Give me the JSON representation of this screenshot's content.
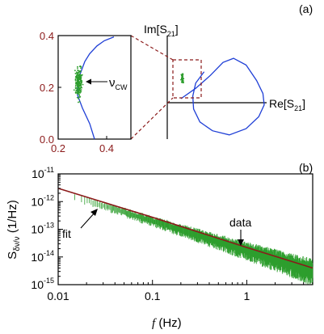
{
  "colors": {
    "curve_blue": "#1f3fd6",
    "noise_green": "#2e9e2e",
    "fit_red": "#8b1a1a",
    "inset_axis": "#8b1a1a"
  },
  "chart_data": [
    {
      "panel_label": "(a)",
      "type": "scatter",
      "xlabel": "Re[S21]",
      "ylabel": "Im[S21]",
      "series": [
        {
          "values": [
            {
              "x": 0.0,
              "y": 0.0
            },
            {
              "x": 0.35,
              "y": 0.2
            },
            {
              "x": 0.7,
              "y": 0.45
            },
            {
              "x": 1.0,
              "y": 0.7
            },
            {
              "x": 1.25,
              "y": 0.78
            },
            {
              "x": 1.55,
              "y": 0.65
            },
            {
              "x": 1.8,
              "y": 0.35
            },
            {
              "x": 1.95,
              "y": 0.1
            },
            {
              "x": 1.98,
              "y": -0.12
            },
            {
              "x": 1.85,
              "y": -0.35
            },
            {
              "x": 1.55,
              "y": -0.58
            },
            {
              "x": 1.15,
              "y": -0.7
            },
            {
              "x": 0.75,
              "y": -0.62
            },
            {
              "x": 0.45,
              "y": -0.45
            },
            {
              "x": 0.3,
              "y": -0.2
            },
            {
              "x": 0.28,
              "y": 0.05
            },
            {
              "x": 0.35,
              "y": 0.3
            },
            {
              "x": 0.55,
              "y": 0.52
            }
          ]
        }
      ]
    },
    {
      "panel_label": "inset",
      "type": "scatter",
      "annotation": "νCW",
      "x_ticks": [
        "0.2",
        "0.4"
      ],
      "y_ticks": [
        "0.0",
        "0.2",
        "0.4"
      ],
      "xlim": [
        0.2,
        0.5
      ],
      "ylim": [
        0.0,
        0.4
      ],
      "series": [
        {
          "values": [
            {
              "x": 0.35,
              "y": 0.0
            },
            {
              "x": 0.33,
              "y": 0.06
            },
            {
              "x": 0.3,
              "y": 0.12
            },
            {
              "x": 0.28,
              "y": 0.17
            },
            {
              "x": 0.28,
              "y": 0.21
            },
            {
              "x": 0.29,
              "y": 0.25
            },
            {
              "x": 0.31,
              "y": 0.3
            },
            {
              "x": 0.33,
              "y": 0.33
            },
            {
              "x": 0.36,
              "y": 0.36
            },
            {
              "x": 0.39,
              "y": 0.38
            },
            {
              "x": 0.43,
              "y": 0.395
            }
          ]
        }
      ],
      "noise_cluster": {
        "center": {
          "x": 0.285,
          "y": 0.22
        },
        "spread": {
          "x": 0.012,
          "y": 0.045
        }
      }
    },
    {
      "panel_label": "(b)",
      "type": "line",
      "xlabel_italic": "f",
      "xlabel_unit": "(Hz)",
      "ylabel": "Sδν/ν (1/Hz)",
      "x_scale": "log",
      "y_scale": "log",
      "xlim": [
        0.01,
        5
      ],
      "ylim": [
        1e-15,
        1e-11
      ],
      "x_ticks": [
        "0.01",
        "0.1",
        "1"
      ],
      "y_ticks": [
        "10-15",
        "10-14",
        "10-13",
        "10-12",
        "10-11"
      ],
      "annotations": [
        "fit",
        "data"
      ],
      "series": [
        {
          "name": "fit",
          "power_law": {
            "amplitude_at_1Hz": 2.2e-14,
            "exponent": -1.05
          },
          "values": [
            {
              "x": 0.01,
              "y": 3e-12
            },
            {
              "x": 0.1,
              "y": 2.7e-13
            },
            {
              "x": 1.0,
              "y": 2.2e-14
            },
            {
              "x": 5.0,
              "y": 4e-15
            }
          ]
        },
        {
          "name": "data",
          "values": [
            {
              "x": 0.02,
              "y": 1.3e-12
            },
            {
              "x": 0.05,
              "y": 5e-13
            },
            {
              "x": 0.1,
              "y": 2.2e-13
            },
            {
              "x": 0.3,
              "y": 7e-14
            },
            {
              "x": 1.0,
              "y": 1.8e-14
            },
            {
              "x": 3.0,
              "y": 6e-15
            },
            {
              "x": 5.0,
              "y": 3.5e-15
            }
          ]
        }
      ]
    }
  ]
}
